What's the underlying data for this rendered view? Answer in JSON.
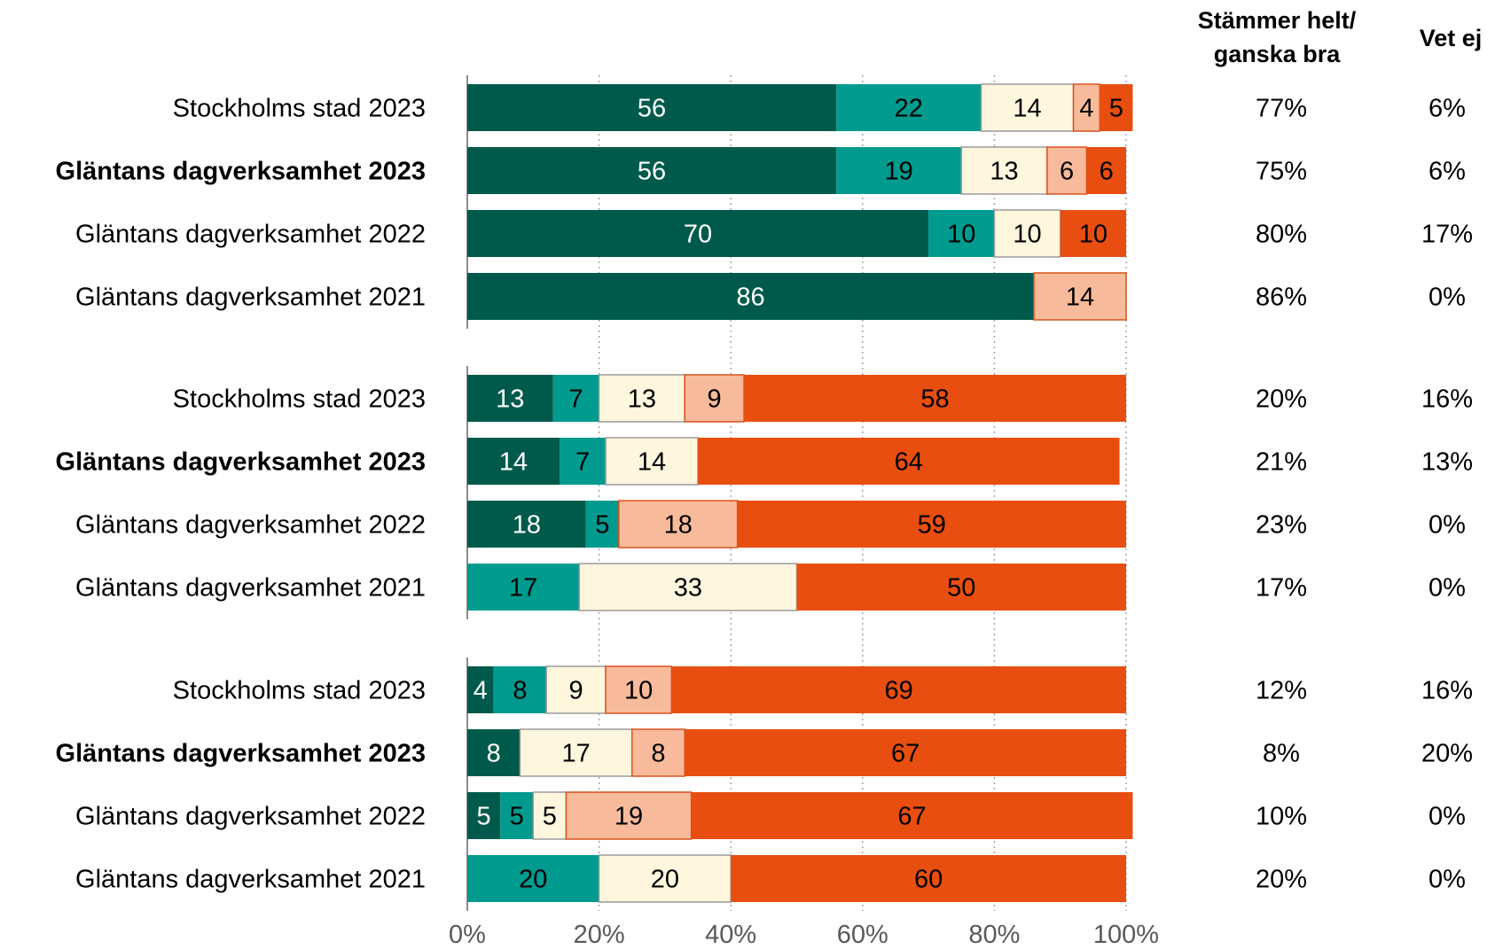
{
  "columns": {
    "agree_header": [
      "Stämmer helt/",
      "ganska bra"
    ],
    "dontknow_header": "Vet ej"
  },
  "colors": {
    "stammer_helt": "#005A4B",
    "stammer_ganska_bra": "#009A8F",
    "neutral": "#FFF6DE",
    "stammer_ganska_daligt": "#F7BA9B",
    "stammer_inte_alls": "#E84E10"
  },
  "chart_data": {
    "type": "bar",
    "orientation": "horizontal",
    "stacked": true,
    "xlim": [
      0,
      100
    ],
    "xticks": [
      "0%",
      "20%",
      "40%",
      "60%",
      "80%",
      "100%"
    ],
    "grid": "vertical-dotted",
    "groups": [
      {
        "rows": [
          {
            "label": "Stockholms stad 2023",
            "bold": false,
            "segments": [
              56,
              22,
              14,
              4,
              5
            ],
            "agree": "77%",
            "dontknow": "6%"
          },
          {
            "label": "Gläntans dagverksamhet 2023",
            "bold": true,
            "segments": [
              56,
              19,
              13,
              6,
              6
            ],
            "agree": "75%",
            "dontknow": "6%"
          },
          {
            "label": "Gläntans dagverksamhet 2022",
            "bold": false,
            "segments": [
              70,
              10,
              10,
              0,
              10
            ],
            "agree": "80%",
            "dontknow": "17%"
          },
          {
            "label": "Gläntans dagverksamhet 2021",
            "bold": false,
            "segments": [
              86,
              0,
              0,
              14,
              0
            ],
            "agree": "86%",
            "dontknow": "0%"
          }
        ]
      },
      {
        "rows": [
          {
            "label": "Stockholms stad 2023",
            "bold": false,
            "segments": [
              13,
              7,
              13,
              9,
              58
            ],
            "agree": "20%",
            "dontknow": "16%"
          },
          {
            "label": "Gläntans dagverksamhet 2023",
            "bold": true,
            "segments": [
              14,
              7,
              14,
              0,
              64
            ],
            "agree": "21%",
            "dontknow": "13%"
          },
          {
            "label": "Gläntans dagverksamhet 2022",
            "bold": false,
            "segments": [
              18,
              5,
              0,
              18,
              59
            ],
            "agree": "23%",
            "dontknow": "0%"
          },
          {
            "label": "Gläntans dagverksamhet 2021",
            "bold": false,
            "segments": [
              0,
              17,
              33,
              0,
              50
            ],
            "agree": "17%",
            "dontknow": "0%"
          }
        ]
      },
      {
        "rows": [
          {
            "label": "Stockholms stad 2023",
            "bold": false,
            "segments": [
              4,
              8,
              9,
              10,
              69
            ],
            "agree": "12%",
            "dontknow": "16%"
          },
          {
            "label": "Gläntans dagverksamhet 2023",
            "bold": true,
            "segments": [
              8,
              0,
              17,
              8,
              67
            ],
            "agree": "8%",
            "dontknow": "20%"
          },
          {
            "label": "Gläntans dagverksamhet 2022",
            "bold": false,
            "segments": [
              5,
              5,
              5,
              19,
              67
            ],
            "agree": "10%",
            "dontknow": "0%"
          },
          {
            "label": "Gläntans dagverksamhet 2021",
            "bold": false,
            "segments": [
              0,
              20,
              20,
              0,
              60
            ],
            "agree": "20%",
            "dontknow": "0%"
          }
        ]
      }
    ]
  }
}
